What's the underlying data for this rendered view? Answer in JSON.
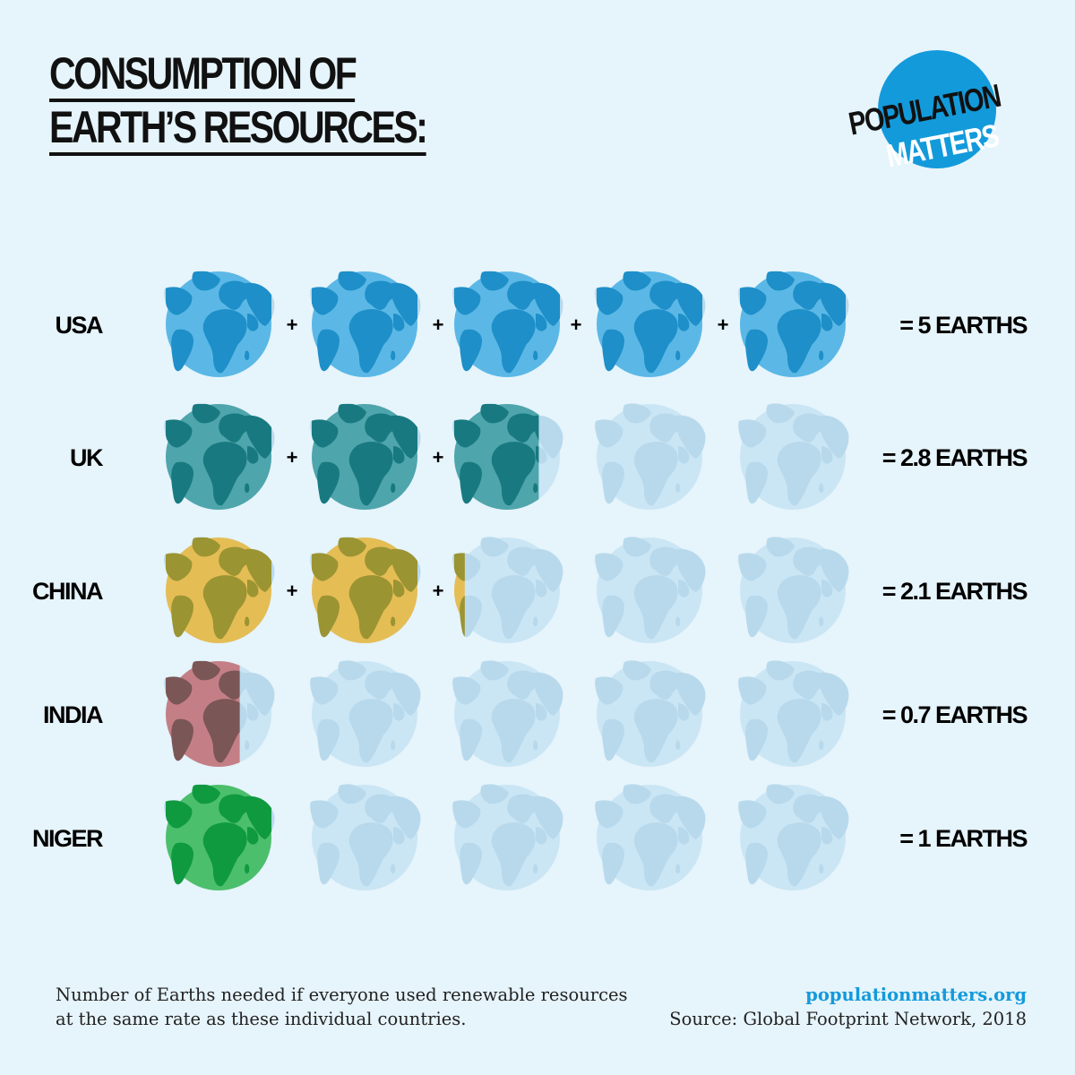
{
  "title": {
    "line1": "CONSUMPTION OF",
    "line2": "EARTH’S RESOURCES:"
  },
  "logo": {
    "line1": "POPULATION",
    "line2": "MATTERS",
    "circle_color": "#139adb"
  },
  "colors": {
    "background": "#e6f4fb",
    "empty_globe": "#cae6f5",
    "empty_land": "#b8d9ec",
    "accent": "#139adb"
  },
  "plus_symbol": "+",
  "chart_data": {
    "type": "pictograph",
    "unit": "Earths",
    "max_icons": 5,
    "rows": [
      {
        "country": "USA",
        "value": 5,
        "total_label": "= 5 EARTHS",
        "color": "#5bb8e6",
        "land_color": "#1e8fc8"
      },
      {
        "country": "UK",
        "value": 2.8,
        "total_label": "= 2.8 EARTHS",
        "color": "#4fa5ac",
        "land_color": "#187a80"
      },
      {
        "country": "CHINA",
        "value": 2.1,
        "total_label": "= 2.1 EARTHS",
        "color": "#e5bd55",
        "land_color": "#9b9433"
      },
      {
        "country": "INDIA",
        "value": 0.7,
        "total_label": "= 0.7 EARTHS",
        "color": "#c47f86",
        "land_color": "#7b5656"
      },
      {
        "country": "NIGER",
        "value": 1,
        "total_label": "= 1 EARTHS",
        "color": "#4cbf6c",
        "land_color": "#109a40"
      }
    ]
  },
  "footnote": "Number of Earths needed if everyone used renewable resources at the same rate as these individual countries.",
  "website": "populationmatters.org",
  "source": "Source: Global Footprint Network, 2018"
}
